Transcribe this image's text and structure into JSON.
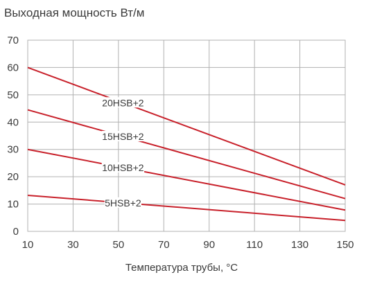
{
  "chart_data": {
    "type": "line",
    "title": "Выходная мощность Вт/м",
    "xlabel": "Температура трубы, °C",
    "ylabel": "",
    "xlim": [
      10,
      150
    ],
    "ylim": [
      0,
      70
    ],
    "x_ticks": [
      10,
      30,
      50,
      70,
      90,
      110,
      130,
      150
    ],
    "y_ticks": [
      0,
      10,
      20,
      30,
      40,
      50,
      60,
      70
    ],
    "grid": true,
    "legend": "inline labels",
    "colors": {
      "series": "#c8202a",
      "grid": "#b0b0b0",
      "text": "#3a3a3a"
    },
    "series": [
      {
        "name": "20HSB+2",
        "x": [
          10,
          150
        ],
        "values": [
          60,
          17
        ]
      },
      {
        "name": "15HSB+2",
        "x": [
          10,
          150
        ],
        "values": [
          44.5,
          12
        ]
      },
      {
        "name": "10HSB+2",
        "x": [
          10,
          150
        ],
        "values": [
          30,
          7.8
        ]
      },
      {
        "name": "5HSB+2",
        "x": [
          10,
          150
        ],
        "values": [
          13.2,
          4
        ]
      }
    ]
  }
}
